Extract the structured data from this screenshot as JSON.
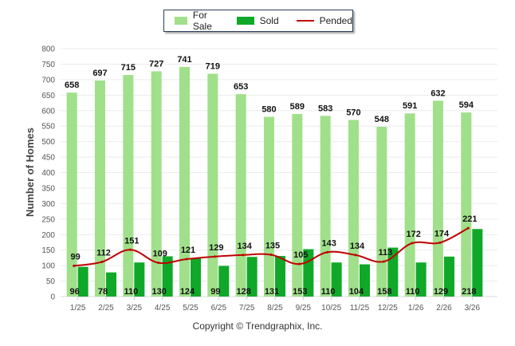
{
  "chart_data": {
    "type": "bar",
    "title": "",
    "xlabel": "",
    "ylabel": "Number of Homes",
    "ylim": [
      0,
      800
    ],
    "yticks": [
      0,
      50,
      100,
      150,
      200,
      250,
      300,
      350,
      400,
      450,
      500,
      550,
      600,
      650,
      700,
      750,
      800
    ],
    "grid": true,
    "legend_position": "top-center",
    "categories": [
      "1/25",
      "2/25",
      "3/25",
      "4/25",
      "5/25",
      "6/25",
      "7/25",
      "8/25",
      "9/25",
      "10/25",
      "11/25",
      "12/25",
      "1/26",
      "2/26",
      "3/26"
    ],
    "series": [
      {
        "name": "For Sale",
        "kind": "bar",
        "color": "#a0e08a",
        "values": [
          658,
          697,
          715,
          727,
          741,
          719,
          653,
          580,
          589,
          583,
          570,
          548,
          591,
          632,
          594
        ]
      },
      {
        "name": "Sold",
        "kind": "bar",
        "color": "#10a828",
        "values": [
          96,
          78,
          110,
          130,
          124,
          99,
          128,
          131,
          153,
          110,
          104,
          158,
          110,
          129,
          218
        ]
      },
      {
        "name": "Pended",
        "kind": "line",
        "color": "#c00000",
        "values": [
          99,
          112,
          151,
          109,
          121,
          129,
          134,
          135,
          105,
          143,
          134,
          113,
          172,
          174,
          221
        ]
      }
    ]
  },
  "copyright": "Copyright © Trendgraphix, Inc."
}
